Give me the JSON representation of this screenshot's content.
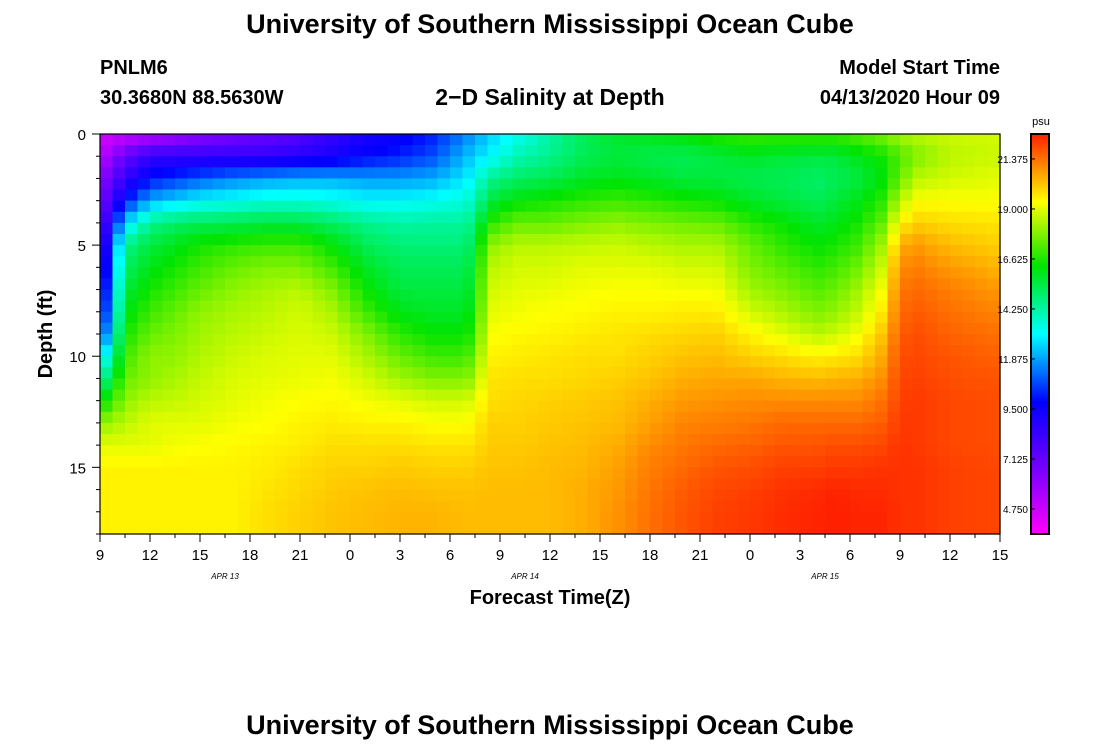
{
  "header": {
    "title": "University of Southern Mississippi Ocean Cube",
    "station_id": "PNLM6",
    "station_coords": "30.3680N 88.5630W",
    "chart_title": "2−D Salinity at Depth",
    "model_start_label": "Model Start Time",
    "model_start_value": "04/13/2020 Hour 09"
  },
  "footer": {
    "title": "University of Southern Mississippi Ocean Cube"
  },
  "chart_data": {
    "type": "heatmap",
    "title": "2−D Salinity at Depth",
    "xlabel": "Forecast Time(Z)",
    "ylabel": "Depth (ft)",
    "x_start_hour": 9,
    "x_end_hour": 63,
    "x_ticks": [
      "9",
      "12",
      "15",
      "18",
      "21",
      "0",
      "3",
      "6",
      "9",
      "12",
      "15",
      "18",
      "21",
      "0",
      "3",
      "6",
      "9",
      "12",
      "15"
    ],
    "date_labels": [
      {
        "text": "APR 13",
        "hour": 16.5
      },
      {
        "text": "APR 14",
        "hour": 34.5
      },
      {
        "text": "APR 15",
        "hour": 52.5
      }
    ],
    "y_range": [
      0,
      18
    ],
    "y_ticks": [
      0,
      5,
      10,
      15
    ],
    "colorbar": {
      "unit": "psu",
      "min": 3.56,
      "max": 22.56,
      "tick_values": [
        4.75,
        7.125,
        9.5,
        11.875,
        14.25,
        16.625,
        19.0,
        21.375
      ],
      "tick_labels": [
        "4.750",
        "7.125",
        "9.500",
        "11.875",
        "14.250",
        "16.625",
        "19.000",
        "21.375"
      ]
    },
    "salinity_field": {
      "time_hours": [
        9,
        10.5,
        12,
        13.5,
        15,
        17,
        19,
        21,
        23,
        25,
        27,
        29,
        31,
        32.5,
        34,
        36,
        38,
        40,
        42,
        44,
        46,
        48,
        50,
        52,
        53,
        54.5,
        56,
        57,
        58,
        60,
        63
      ],
      "depth_ft": [
        0,
        1,
        2,
        3,
        4,
        5,
        6,
        7,
        8,
        9,
        10,
        11,
        12,
        13,
        14,
        15,
        16,
        17,
        18
      ],
      "profiles": [
        [
          4.5,
          5,
          6,
          6.5,
          7,
          7.5,
          8,
          8.5,
          9,
          10,
          12,
          14,
          16,
          18,
          19,
          19.5,
          19.5,
          19.5,
          19.5
        ],
        [
          4.8,
          7,
          8.5,
          10,
          12.5,
          14.5,
          15,
          15.5,
          16,
          16.5,
          17,
          17.5,
          18,
          18.5,
          19,
          19.5,
          19.5,
          19.5,
          19.5
        ],
        [
          5,
          8.5,
          10,
          12,
          14.5,
          15.5,
          16,
          16.5,
          17,
          17.5,
          18,
          18,
          18.5,
          19,
          19,
          19.5,
          19.5,
          19.5,
          19.5
        ],
        [
          5.5,
          8.5,
          10.5,
          12.5,
          15,
          16,
          16.5,
          17,
          17.5,
          17.8,
          18,
          18.3,
          18.6,
          19,
          19.2,
          19.5,
          19.5,
          19.5,
          19.5
        ],
        [
          6,
          8.5,
          11,
          13,
          15.2,
          16.5,
          17,
          17.5,
          18,
          18.2,
          18.4,
          18.6,
          18.8,
          19,
          19.3,
          19.5,
          19.5,
          19.5,
          19.5
        ],
        [
          6.5,
          8.5,
          11.5,
          13.2,
          15.3,
          16.8,
          17.5,
          18,
          18.3,
          18.5,
          18.7,
          18.9,
          19,
          19.2,
          19.4,
          19.5,
          19.5,
          19.5,
          19.5
        ],
        [
          7,
          8.5,
          11.8,
          13.5,
          15.5,
          17,
          17.8,
          18.3,
          18.5,
          18.7,
          18.9,
          19,
          19.2,
          19.3,
          19.5,
          19.6,
          19.7,
          19.8,
          19.8
        ],
        [
          7.5,
          8.8,
          12,
          13.5,
          15.5,
          17,
          17.8,
          18.5,
          18.8,
          18.9,
          19,
          19.1,
          19.3,
          19.5,
          19.6,
          19.8,
          19.9,
          20,
          20
        ],
        [
          8.5,
          9.2,
          12,
          13.3,
          15,
          16.2,
          17,
          17.8,
          18.3,
          18.7,
          19,
          19.2,
          19.4,
          19.6,
          19.8,
          20,
          20.1,
          20.2,
          20.2
        ],
        [
          9.2,
          9.8,
          11.8,
          13,
          14.5,
          15.2,
          15.8,
          16.3,
          17,
          17.8,
          18.3,
          18.8,
          19.2,
          19.5,
          19.8,
          20,
          20.2,
          20.3,
          20.3
        ],
        [
          9.5,
          10.2,
          11.8,
          13,
          14.2,
          14.8,
          15.2,
          15.5,
          16,
          16.8,
          17.5,
          18.2,
          19,
          19.5,
          19.8,
          20.1,
          20.3,
          20.4,
          20.4
        ],
        [
          10.2,
          10.8,
          12,
          13.2,
          14.3,
          14.8,
          15.2,
          15.5,
          15.8,
          16.3,
          17,
          17.8,
          18.8,
          19.3,
          19.7,
          20,
          20.2,
          20.4,
          20.4
        ],
        [
          11.5,
          12.2,
          12.8,
          13.5,
          14.3,
          14.8,
          15.2,
          15.5,
          15.8,
          16.3,
          17,
          17.8,
          18.8,
          19.3,
          19.7,
          20,
          20.2,
          20.3,
          20.3
        ],
        [
          12.5,
          13,
          14.5,
          15.5,
          16.8,
          18,
          18.5,
          18.8,
          19,
          19.3,
          19.5,
          19.7,
          19.8,
          20,
          20.1,
          20.2,
          20.3,
          20.3,
          20.3
        ],
        [
          13.2,
          14,
          15,
          16.2,
          17.5,
          18.5,
          18.8,
          19,
          19.2,
          19.4,
          19.6,
          19.8,
          19.9,
          20,
          20.1,
          20.2,
          20.3,
          20.3,
          20.3
        ],
        [
          14.2,
          14.5,
          15.3,
          16.5,
          17.5,
          18.5,
          18.8,
          19.1,
          19.3,
          19.5,
          19.7,
          19.8,
          20,
          20.1,
          20.2,
          20.3,
          20.3,
          20.3,
          20.3
        ],
        [
          15.2,
          15.2,
          15.8,
          16.8,
          17.8,
          18.6,
          19,
          19.2,
          19.4,
          19.6,
          19.8,
          19.9,
          20.1,
          20.2,
          20.3,
          20.4,
          20.5,
          20.5,
          20.5
        ],
        [
          15.8,
          15.5,
          16,
          17,
          18,
          18.7,
          19,
          19.3,
          19.5,
          19.7,
          19.8,
          20,
          20.2,
          20.3,
          20.5,
          20.7,
          20.8,
          20.9,
          20.9
        ],
        [
          16,
          15.3,
          15.8,
          16.8,
          17.8,
          18.5,
          19,
          19.3,
          19.5,
          19.8,
          20,
          20.2,
          20.5,
          20.7,
          21,
          21.2,
          21.3,
          21.4,
          21.4
        ],
        [
          16.3,
          15.2,
          15.5,
          16.5,
          17.6,
          18.3,
          18.8,
          19.2,
          19.6,
          19.9,
          20.2,
          20.5,
          20.8,
          21.1,
          21.3,
          21.5,
          21.7,
          21.8,
          21.8
        ],
        [
          16.8,
          15.5,
          15.5,
          16.3,
          17.5,
          18.3,
          18.8,
          19.2,
          19.6,
          20,
          20.3,
          20.6,
          20.9,
          21.2,
          21.5,
          21.8,
          22,
          22.1,
          22.1
        ],
        [
          17,
          15.8,
          15.3,
          15.8,
          16.8,
          17.5,
          17.8,
          18.2,
          18.8,
          19.5,
          20,
          20.6,
          21,
          21.3,
          21.6,
          21.9,
          22.1,
          22.2,
          22.2
        ],
        [
          17,
          15.6,
          15.2,
          15.5,
          16.3,
          16.8,
          17.3,
          17.8,
          18.3,
          19,
          19.8,
          20.4,
          21,
          21.5,
          21.8,
          22.1,
          22.3,
          22.4,
          22.4
        ],
        [
          17,
          15.5,
          15,
          15.2,
          15.8,
          16.3,
          16.8,
          17.3,
          17.8,
          18.5,
          19.5,
          20.3,
          21,
          21.5,
          21.8,
          22.1,
          22.4,
          22.5,
          22.5
        ],
        [
          17,
          15.5,
          15.2,
          15.5,
          16,
          16.5,
          17,
          17.5,
          18,
          18.7,
          19.6,
          20.4,
          21,
          21.5,
          21.9,
          22.2,
          22.5,
          22.6,
          22.6
        ],
        [
          17.3,
          16,
          15.5,
          16,
          16.5,
          17,
          17.6,
          18.2,
          18.6,
          19.2,
          19.8,
          20.5,
          21,
          21.5,
          21.9,
          22.2,
          22.4,
          22.5,
          22.5
        ],
        [
          17.8,
          16.5,
          16.2,
          16.8,
          17.5,
          18.3,
          18.8,
          19.3,
          19.7,
          20.2,
          20.6,
          21,
          21.4,
          21.7,
          22,
          22.3,
          22.4,
          22.5,
          22.5
        ],
        [
          18.3,
          17.2,
          17.5,
          18.5,
          19.5,
          20.5,
          21,
          21.3,
          21.5,
          21.7,
          21.9,
          22,
          22.1,
          22.2,
          22.3,
          22.3,
          22.3,
          22.3,
          22.3
        ],
        [
          18.5,
          17.8,
          18.5,
          19.3,
          20,
          20.8,
          21.2,
          21.5,
          21.7,
          21.9,
          22,
          22.1,
          22.2,
          22.2,
          22.2,
          22.3,
          22.3,
          22.3,
          22.3
        ],
        [
          18.7,
          18.5,
          18.8,
          19.3,
          19.8,
          20.3,
          20.8,
          21.2,
          21.4,
          21.6,
          21.8,
          21.9,
          22,
          22,
          22,
          22.1,
          22.1,
          22.1,
          22.1
        ],
        [
          18.8,
          18.7,
          19,
          19.3,
          19.7,
          20,
          20.4,
          20.8,
          21.1,
          21.4,
          21.6,
          21.8,
          21.9,
          21.9,
          21.9,
          22,
          22,
          22,
          22
        ]
      ]
    }
  }
}
